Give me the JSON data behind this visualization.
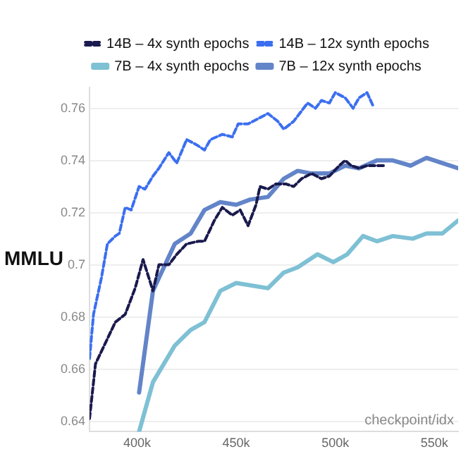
{
  "chart_data": {
    "type": "line",
    "ylabel": "MMLU",
    "xlabel": "checkpoint/idx",
    "xlim": [
      376000,
      562000
    ],
    "xticks": [
      {
        "value": 400000,
        "label": "400k"
      },
      {
        "value": 450000,
        "label": "450k"
      },
      {
        "value": 500000,
        "label": "500k"
      },
      {
        "value": 550000,
        "label": "550k"
      }
    ],
    "ylim": [
      0.636,
      0.768
    ],
    "yticks": [
      0.64,
      0.66,
      0.68,
      {
        "value": 0.7,
        "label": "0.7"
      },
      0.72,
      0.74,
      0.76
    ],
    "grid": "y",
    "legend": "top",
    "marker": "none",
    "series": [
      {
        "name": "14B – 4x synth epochs",
        "color": "#1a1a4e",
        "line_style": "dashed",
        "x": [
          376000,
          379000,
          384000,
          389000,
          394000,
          399000,
          403000,
          408000,
          411000,
          416000,
          420000,
          425000,
          431000,
          434000,
          439000,
          443000,
          448000,
          452000,
          456000,
          460000,
          462000,
          466000,
          470000,
          475000,
          479000,
          483000,
          488000,
          493000,
          497000,
          502000,
          505000,
          508000,
          512000,
          516000,
          520000,
          525000
        ],
        "values": [
          0.641,
          0.662,
          0.67,
          0.678,
          0.681,
          0.691,
          0.702,
          0.69,
          0.7,
          0.7,
          0.704,
          0.708,
          0.709,
          0.709,
          0.717,
          0.722,
          0.719,
          0.721,
          0.715,
          0.723,
          0.73,
          0.729,
          0.731,
          0.731,
          0.73,
          0.733,
          0.735,
          0.733,
          0.734,
          0.738,
          0.74,
          0.738,
          0.737,
          0.738,
          0.738,
          0.738
        ]
      },
      {
        "name": "14B – 12x synth epochs",
        "color": "#3b6ff0",
        "line_style": "dashed",
        "x": [
          376000,
          378000,
          382000,
          385000,
          389000,
          391000,
          394000,
          397000,
          401000,
          404000,
          408000,
          411000,
          416000,
          420000,
          425000,
          430000,
          434000,
          437000,
          443000,
          448000,
          451000,
          456000,
          461000,
          466000,
          471000,
          474000,
          479000,
          482000,
          486000,
          490000,
          493000,
          497000,
          500000,
          505000,
          509000,
          512000,
          516000,
          519000
        ],
        "values": [
          0.664,
          0.681,
          0.695,
          0.708,
          0.711,
          0.712,
          0.722,
          0.721,
          0.73,
          0.729,
          0.734,
          0.737,
          0.743,
          0.739,
          0.748,
          0.746,
          0.744,
          0.748,
          0.75,
          0.749,
          0.754,
          0.754,
          0.756,
          0.758,
          0.755,
          0.752,
          0.755,
          0.758,
          0.762,
          0.76,
          0.763,
          0.762,
          0.766,
          0.764,
          0.76,
          0.764,
          0.766,
          0.761
        ]
      },
      {
        "name": "7B – 4x synth epochs",
        "color": "#7ec0d4",
        "line_style": "solid",
        "x": [
          401000,
          408000,
          419000,
          427000,
          434000,
          442000,
          450000,
          466000,
          474000,
          481000,
          491000,
          499000,
          506000,
          514000,
          521000,
          529000,
          539000,
          546000,
          554000,
          562000
        ],
        "values": [
          0.636,
          0.655,
          0.669,
          0.675,
          0.678,
          0.69,
          0.693,
          0.691,
          0.697,
          0.699,
          0.704,
          0.701,
          0.704,
          0.711,
          0.709,
          0.711,
          0.71,
          0.712,
          0.712,
          0.717
        ]
      },
      {
        "name": "7B – 12x synth epochs",
        "color": "#6384c8",
        "line_style": "solid",
        "x": [
          401000,
          408000,
          419000,
          427000,
          434000,
          442000,
          450000,
          457000,
          466000,
          474000,
          481000,
          488000,
          497000,
          505000,
          512000,
          521000,
          529000,
          538000,
          546000,
          554000,
          562000
        ],
        "values": [
          0.651,
          0.69,
          0.708,
          0.712,
          0.721,
          0.724,
          0.723,
          0.725,
          0.726,
          0.733,
          0.736,
          0.735,
          0.735,
          0.738,
          0.737,
          0.74,
          0.74,
          0.738,
          0.741,
          0.739,
          0.737
        ]
      }
    ]
  }
}
